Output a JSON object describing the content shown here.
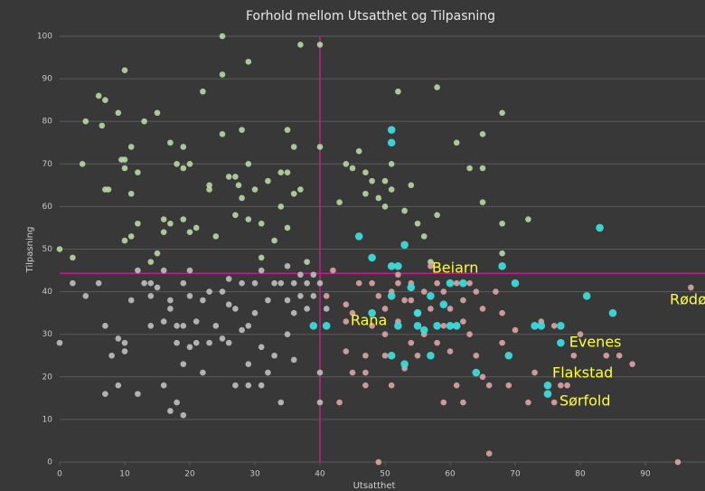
{
  "chart_data": {
    "type": "scatter",
    "title": "Forhold mellom Utsatthet og Tilpasning",
    "x_label": "Utsatthet",
    "y_label": "Tilpasning",
    "xlim": [
      0,
      100
    ],
    "ylim": [
      0,
      100
    ],
    "xticks": [
      0,
      10,
      20,
      30,
      40,
      50,
      60,
      70,
      80,
      90
    ],
    "yticks": [
      0,
      10,
      20,
      30,
      40,
      50,
      60,
      70,
      80,
      90,
      100
    ],
    "grid": true,
    "vline": 40,
    "hline": 44.3,
    "line_color": "#c0208a",
    "series": [
      {
        "color": "#b5d6a0",
        "x": [
          0,
          2,
          4,
          3.5,
          6,
          7,
          6.5,
          7,
          7.5,
          9,
          10,
          9.5,
          10,
          10,
          11,
          11,
          12,
          13,
          12,
          11,
          10,
          14,
          15,
          15,
          16,
          16,
          17,
          17,
          18,
          19,
          19,
          19,
          20,
          20,
          21,
          22,
          23,
          23,
          24,
          25,
          25,
          25,
          26,
          27,
          27,
          28,
          27.5,
          28,
          29,
          29,
          29,
          30,
          31,
          31,
          32,
          33,
          34,
          34,
          35,
          35,
          35,
          36,
          37,
          36,
          37,
          38,
          40,
          40,
          43,
          44,
          45,
          46,
          47,
          48,
          49,
          50,
          50,
          51,
          52,
          53,
          54,
          56,
          58,
          58,
          61,
          63,
          65,
          65,
          65,
          68,
          68,
          68,
          72,
          47,
          51,
          55,
          57
        ],
        "values": [
          50,
          48,
          80,
          70,
          86,
          85,
          79,
          64,
          64,
          82,
          92,
          71,
          71,
          69,
          74,
          63,
          68,
          80,
          56,
          53,
          52,
          47,
          82,
          49,
          57,
          54,
          56,
          75,
          70,
          69,
          74,
          57,
          70,
          54,
          55,
          87,
          65,
          64,
          53,
          91,
          77,
          100,
          67,
          67,
          58,
          78,
          65,
          62,
          94,
          57,
          70,
          64,
          56,
          48,
          66,
          52,
          60,
          68,
          78,
          55,
          68,
          74,
          98,
          63,
          64,
          47,
          98,
          74,
          61,
          70,
          69,
          73,
          68,
          66,
          62,
          66,
          60,
          70,
          87,
          59,
          65,
          53,
          88,
          58,
          75,
          69,
          77,
          69,
          61,
          82,
          56,
          49,
          57,
          63,
          64,
          56,
          47
        ]
      },
      {
        "color": "#bdbdbd",
        "x": [
          0,
          4,
          6,
          7,
          7,
          8,
          9,
          9,
          10,
          10,
          11,
          12,
          12,
          13,
          14,
          14,
          15,
          16,
          16,
          16,
          17,
          17,
          17,
          18,
          18,
          18,
          19,
          19,
          19,
          20,
          20,
          21,
          21,
          22,
          22,
          23,
          23,
          24,
          25,
          25,
          26,
          26,
          27,
          27,
          28,
          28,
          29,
          29,
          29,
          30,
          30,
          31,
          31,
          32,
          32,
          33,
          33,
          34,
          34,
          35,
          35,
          36,
          36,
          37,
          37,
          38,
          38,
          39,
          39,
          40,
          41,
          40,
          40,
          2,
          14,
          20,
          26,
          31,
          35,
          36,
          19
        ],
        "values": [
          28,
          39,
          42,
          16,
          32,
          25,
          29,
          18,
          28,
          26,
          38,
          16,
          45,
          42,
          39,
          32,
          41,
          18,
          33,
          45,
          38,
          12,
          36,
          14,
          28,
          32,
          11,
          23,
          32,
          27,
          39,
          33,
          28,
          38,
          21,
          40,
          28,
          32,
          40,
          29,
          43,
          28,
          36,
          18,
          31,
          42,
          23,
          18,
          32,
          42,
          35,
          27,
          18,
          38,
          21,
          42,
          25,
          14,
          42,
          38,
          30,
          42,
          35,
          44,
          39,
          42,
          36,
          39,
          44,
          42,
          36,
          21,
          14,
          42,
          42,
          45,
          37,
          45,
          46,
          24,
          42
        ]
      },
      {
        "color": "#d9a3a3",
        "x": [
          41,
          42,
          43,
          44,
          44,
          45,
          45,
          46,
          47,
          47,
          47,
          48,
          48,
          49,
          49,
          50,
          50,
          51,
          51,
          52,
          52,
          52,
          53,
          53,
          54,
          54,
          55,
          55,
          56,
          56,
          57,
          57,
          58,
          58,
          59,
          59,
          59,
          60,
          60,
          61,
          61,
          62,
          62,
          63,
          63,
          64,
          64,
          65,
          65,
          66,
          66,
          67,
          68,
          68,
          69,
          70,
          72,
          73,
          74,
          76,
          76,
          77,
          78,
          79,
          80,
          84,
          86,
          88,
          95,
          97,
          44,
          50,
          54,
          62
        ],
        "values": [
          39,
          45,
          14,
          37,
          26,
          21,
          35,
          42,
          25,
          21,
          18,
          42,
          32,
          0,
          39,
          36,
          25,
          40,
          18,
          33,
          44,
          42,
          22,
          38,
          42,
          28,
          35,
          25,
          40,
          30,
          46,
          36,
          42,
          28,
          14,
          40,
          32,
          36,
          26,
          42,
          18,
          14,
          38,
          30,
          42,
          40,
          25,
          36,
          20,
          2,
          18,
          40,
          35,
          28,
          18,
          31,
          14,
          21,
          33,
          32,
          14,
          18,
          18,
          25,
          30,
          25,
          25,
          23,
          0,
          41,
          33,
          30,
          38,
          33
        ]
      },
      {
        "color": "#3de0e0",
        "x": [
          41,
          46,
          48,
          48,
          51,
          51,
          51,
          51,
          52,
          52,
          53,
          53,
          51,
          54,
          55,
          55,
          56,
          57,
          57,
          58,
          59,
          60,
          60,
          61,
          62,
          64,
          68,
          69,
          70,
          73,
          74,
          77,
          77,
          75,
          75,
          81,
          83,
          85,
          39
        ],
        "values": [
          32,
          53,
          48,
          35,
          46,
          39,
          78,
          75,
          46,
          32,
          51,
          23,
          25,
          41,
          35,
          32,
          31,
          39,
          25,
          32,
          37,
          42,
          32,
          32,
          42,
          21,
          46,
          25,
          42,
          32,
          32,
          32,
          28,
          18,
          16,
          39,
          55,
          35,
          32
        ]
      }
    ],
    "annotations": [
      {
        "text": "Beiarn",
        "x": 57.2,
        "y": 45.4
      },
      {
        "text": "Rana",
        "x": 44.7,
        "y": 33.1
      },
      {
        "text": "Evenes",
        "x": 78.3,
        "y": 28.0
      },
      {
        "text": "Flakstad",
        "x": 75.7,
        "y": 20.8
      },
      {
        "text": "Sørfold",
        "x": 76.8,
        "y": 14.2
      },
      {
        "text": "Rødøy",
        "x": 93.75,
        "y": 38.0
      }
    ],
    "annotation_color": "#ffff33"
  }
}
